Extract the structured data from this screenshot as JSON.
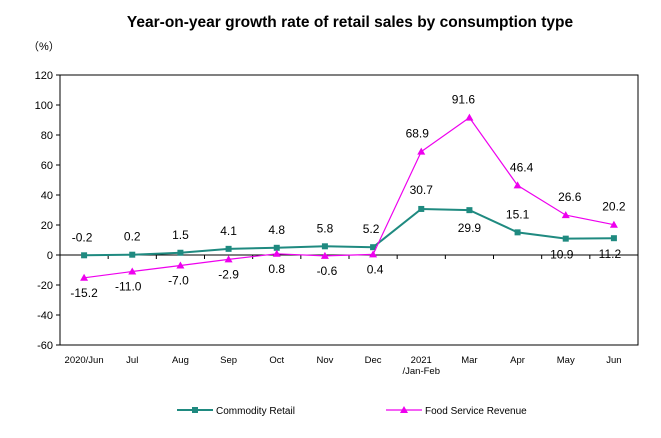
{
  "chart_data": {
    "type": "line",
    "title": "Year-on-year growth rate of retail sales by consumption type",
    "ylabel": "（%）",
    "xlabel": "",
    "ylim": [
      -60,
      120
    ],
    "yticks": [
      -60,
      -40,
      -20,
      0,
      20,
      40,
      60,
      80,
      100,
      120
    ],
    "categories": [
      [
        "2020/Jun"
      ],
      [
        "Jul"
      ],
      [
        "Aug"
      ],
      [
        "Sep"
      ],
      [
        "Oct"
      ],
      [
        "Nov"
      ],
      [
        "Dec"
      ],
      [
        "2021",
        "/Jan-Feb"
      ],
      [
        "Mar"
      ],
      [
        "Apr"
      ],
      [
        "May"
      ],
      [
        "Jun"
      ]
    ],
    "grid": false,
    "legend_position": "bottom",
    "series": [
      {
        "name": "Commodity Retail",
        "color": "#1F8A80",
        "marker": "square",
        "values": [
          -0.2,
          0.2,
          1.5,
          4.1,
          4.8,
          5.8,
          5.2,
          30.7,
          29.9,
          15.1,
          10.9,
          11.2
        ],
        "labels": [
          "-0.2",
          "0.2",
          "1.5",
          "4.1",
          "4.8",
          "5.8",
          "5.2",
          "30.7",
          "29.9",
          "15.1",
          "10.9",
          "11.2"
        ]
      },
      {
        "name": "Food Service Revenue",
        "color": "#EE00EE",
        "marker": "triangle",
        "values": [
          -15.2,
          -11.0,
          -7.0,
          -2.9,
          0.8,
          -0.6,
          0.4,
          68.9,
          91.6,
          46.4,
          26.6,
          20.2
        ],
        "labels": [
          "-15.2",
          "-11.0",
          "-7.0",
          "-2.9",
          "0.8",
          "-0.6",
          "0.4",
          "68.9",
          "91.6",
          "46.4",
          "26.6",
          "20.2"
        ]
      }
    ]
  }
}
